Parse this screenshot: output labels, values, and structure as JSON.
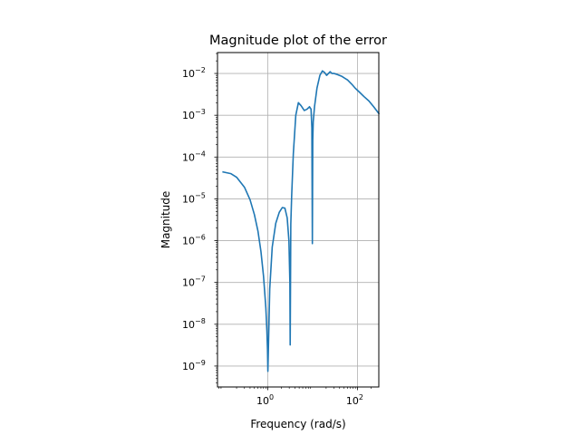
{
  "chart_data": {
    "type": "line",
    "title": "Magnitude plot of the error",
    "xlabel": "Frequency (rad/s)",
    "ylabel": "Magnitude",
    "xscale": "log",
    "yscale": "log",
    "xlim": [
      0.075,
      300
    ],
    "ylim": [
      3.16e-10,
      0.0316
    ],
    "grid": true,
    "legend": "none",
    "x_ticks": [
      {
        "value": 1,
        "base": "10",
        "exp": "0"
      },
      {
        "value": 100,
        "base": "10",
        "exp": "2"
      }
    ],
    "y_ticks": [
      {
        "value": 1e-09,
        "base": "10",
        "exp": "−9"
      },
      {
        "value": 1e-08,
        "base": "10",
        "exp": "−8"
      },
      {
        "value": 1e-07,
        "base": "10",
        "exp": "−7"
      },
      {
        "value": 1e-06,
        "base": "10",
        "exp": "−6"
      },
      {
        "value": 1e-05,
        "base": "10",
        "exp": "−5"
      },
      {
        "value": 0.0001,
        "base": "10",
        "exp": "−4"
      },
      {
        "value": 0.001,
        "base": "10",
        "exp": "−3"
      },
      {
        "value": 0.01,
        "base": "10",
        "exp": "−2"
      }
    ],
    "series": [
      {
        "color": "#1f77b4",
        "x": [
          0.1,
          0.15,
          0.2,
          0.3,
          0.4,
          0.5,
          0.6,
          0.7,
          0.8,
          0.9,
          0.95,
          0.98,
          1.0,
          1.03,
          1.1,
          1.25,
          1.5,
          1.8,
          2.1,
          2.4,
          2.7,
          2.95,
          3.1,
          3.15,
          3.25,
          3.4,
          3.7,
          4.2,
          4.8,
          5.5,
          6.5,
          7.5,
          8.5,
          9.2,
          9.6,
          9.85,
          10.05,
          10.3,
          11,
          12.5,
          14.5,
          16.5,
          18.5,
          20.5,
          22.5,
          24.5,
          27,
          30,
          35,
          45,
          60,
          75,
          90,
          110,
          140,
          180,
          230,
          300
        ],
        "y": [
          4.4e-05,
          4e-05,
          3.3e-05,
          1.9e-05,
          9.5e-06,
          4.2e-06,
          1.7e-06,
          5.5e-07,
          1.4e-07,
          2.5e-08,
          7e-09,
          2.5e-09,
          7.5e-10,
          3e-09,
          7e-08,
          7e-07,
          2.6e-06,
          4.8e-06,
          6.2e-06,
          6e-06,
          3.5e-06,
          1e-06,
          1e-07,
          3.2e-09,
          2.5e-06,
          1.2e-05,
          0.00012,
          0.001,
          0.002,
          0.0017,
          0.0013,
          0.0014,
          0.0016,
          0.0014,
          0.0005,
          8.5e-07,
          0.00025,
          0.0007,
          0.0016,
          0.0045,
          0.009,
          0.0115,
          0.0105,
          0.009,
          0.01,
          0.011,
          0.01,
          0.01,
          0.0095,
          0.0085,
          0.007,
          0.0055,
          0.0044,
          0.0036,
          0.0028,
          0.0022,
          0.0016,
          0.0011
        ]
      }
    ]
  }
}
